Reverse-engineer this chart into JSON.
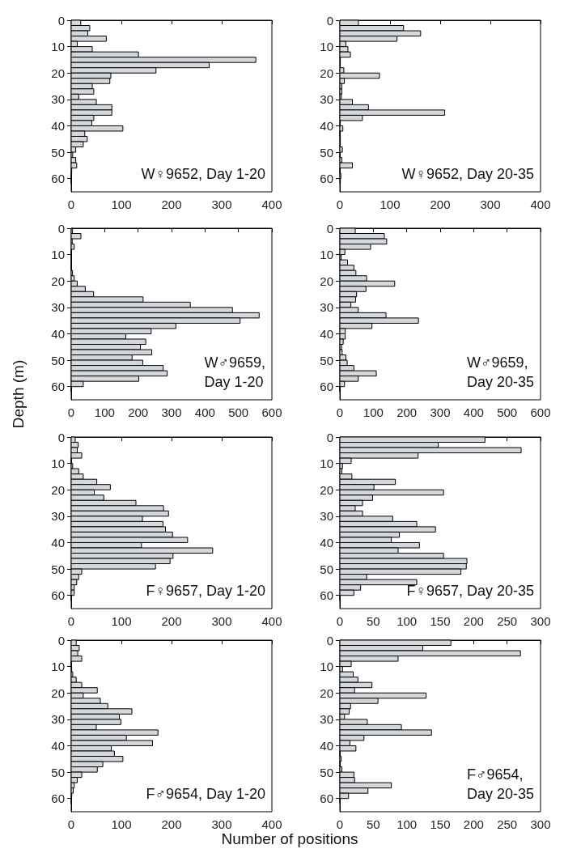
{
  "chart_data": [
    {
      "type": "bar",
      "orientation": "horizontal",
      "x": [
        1,
        3,
        5,
        7,
        9,
        11,
        13,
        15,
        17,
        19,
        21,
        23,
        25,
        27,
        29,
        31,
        33,
        35,
        37,
        39,
        41,
        43,
        45,
        47,
        49,
        51,
        53,
        55,
        57,
        59,
        61
      ],
      "values": [
        19,
        37,
        33,
        70,
        12,
        42,
        134,
        368,
        275,
        169,
        79,
        77,
        42,
        45,
        15,
        50,
        81,
        81,
        45,
        41,
        103,
        27,
        32,
        24,
        9,
        3,
        9,
        11,
        1,
        0,
        0
      ],
      "color": "#d4d7db",
      "xlim": [
        0,
        400
      ],
      "xticks": [
        0,
        100,
        200,
        300,
        400
      ],
      "ylim": [
        65,
        0
      ],
      "yticks": [
        0,
        10,
        20,
        30,
        40,
        50,
        60
      ],
      "annotations": [
        "W♀9652, Day 1-20"
      ]
    },
    {
      "type": "bar",
      "orientation": "horizontal",
      "x": [
        1,
        3,
        5,
        7,
        9,
        11,
        13,
        15,
        17,
        19,
        21,
        23,
        25,
        27,
        29,
        31,
        33,
        35,
        37,
        39,
        41,
        43,
        45,
        47,
        49,
        51,
        53,
        55,
        57,
        59,
        61
      ],
      "values": [
        37,
        127,
        161,
        114,
        12,
        16,
        21,
        1,
        1,
        8,
        79,
        9,
        4,
        4,
        3,
        25,
        57,
        209,
        45,
        1,
        6,
        0,
        1,
        1,
        5,
        0,
        4,
        25,
        0,
        2,
        1
      ],
      "color": "#d4d7db",
      "xlim": [
        0,
        400
      ],
      "xticks": [
        0,
        100,
        200,
        300,
        400
      ],
      "ylim": [
        65,
        0
      ],
      "yticks": [
        0,
        10,
        20,
        30,
        40,
        50,
        60
      ],
      "annotations": [
        "W♀9652, Day 20-35"
      ]
    },
    {
      "type": "bar",
      "orientation": "horizontal",
      "x": [
        1,
        3,
        5,
        7,
        9,
        11,
        13,
        15,
        17,
        19,
        21,
        23,
        25,
        27,
        29,
        31,
        33,
        35,
        37,
        39,
        41,
        43,
        45,
        47,
        49,
        51,
        53,
        55,
        57,
        59,
        61
      ],
      "values": [
        4,
        29,
        3,
        9,
        0,
        0,
        0,
        0,
        4,
        9,
        18,
        42,
        67,
        215,
        356,
        482,
        562,
        505,
        313,
        239,
        163,
        223,
        207,
        241,
        182,
        214,
        275,
        287,
        202,
        36,
        0
      ],
      "color": "#d4d7db",
      "xlim": [
        0,
        600
      ],
      "xticks": [
        0,
        100,
        200,
        300,
        400,
        500,
        600
      ],
      "ylim": [
        65,
        0
      ],
      "yticks": [
        0,
        10,
        20,
        30,
        40,
        50,
        60
      ],
      "annotations": [
        "W♂9659,\nDay 1-20"
      ]
    },
    {
      "type": "bar",
      "orientation": "horizontal",
      "x": [
        1,
        3,
        5,
        7,
        9,
        11,
        13,
        15,
        17,
        19,
        21,
        23,
        25,
        27,
        29,
        31,
        33,
        35,
        37,
        39,
        41,
        43,
        45,
        47,
        49,
        51,
        53,
        55,
        57,
        59,
        61
      ],
      "values": [
        46,
        133,
        140,
        92,
        15,
        4,
        23,
        42,
        48,
        80,
        164,
        78,
        50,
        47,
        33,
        55,
        138,
        235,
        96,
        16,
        16,
        10,
        5,
        7,
        18,
        22,
        42,
        109,
        55,
        14,
        0
      ],
      "color": "#d4d7db",
      "xlim": [
        0,
        600
      ],
      "xticks": [
        0,
        100,
        200,
        300,
        400,
        500,
        600
      ],
      "ylim": [
        65,
        0
      ],
      "yticks": [
        0,
        10,
        20,
        30,
        40,
        50,
        60
      ],
      "annotations": [
        "W♂9659,\nDay 20-35"
      ]
    },
    {
      "type": "bar",
      "orientation": "horizontal",
      "x": [
        1,
        3,
        5,
        7,
        9,
        11,
        13,
        15,
        17,
        19,
        21,
        23,
        25,
        27,
        29,
        31,
        33,
        35,
        37,
        39,
        41,
        43,
        45,
        47,
        49,
        51,
        53,
        55,
        57,
        59,
        61
      ],
      "values": [
        8,
        14,
        12,
        21,
        0,
        3,
        15,
        24,
        51,
        78,
        46,
        65,
        129,
        184,
        194,
        142,
        183,
        188,
        202,
        232,
        140,
        282,
        203,
        197,
        168,
        21,
        15,
        11,
        6,
        6,
        0
      ],
      "color": "#d4d7db",
      "xlim": [
        0,
        400
      ],
      "xticks": [
        0,
        100,
        200,
        300,
        400
      ],
      "ylim": [
        65,
        0
      ],
      "yticks": [
        0,
        10,
        20,
        30,
        40,
        50,
        60
      ],
      "ylabel": "Depth (m)",
      "annotations": [
        "F♀9657, Day 1-20"
      ]
    },
    {
      "type": "bar",
      "orientation": "horizontal",
      "x": [
        1,
        3,
        5,
        7,
        9,
        11,
        13,
        15,
        17,
        19,
        21,
        23,
        25,
        27,
        29,
        31,
        33,
        35,
        37,
        39,
        41,
        43,
        45,
        47,
        49,
        51,
        53,
        55,
        57,
        59,
        61
      ],
      "values": [
        217,
        147,
        271,
        117,
        17,
        4,
        3,
        18,
        83,
        51,
        155,
        49,
        34,
        23,
        34,
        79,
        115,
        143,
        89,
        77,
        119,
        87,
        155,
        190,
        189,
        181,
        40,
        115,
        31,
        21,
        0
      ],
      "color": "#d4d7db",
      "xlim": [
        0,
        300
      ],
      "xticks": [
        0,
        50,
        100,
        150,
        200,
        250,
        300
      ],
      "ylim": [
        65,
        0
      ],
      "yticks": [
        0,
        10,
        20,
        30,
        40,
        50,
        60
      ],
      "annotations": [
        "F♀9657, Day 20-35"
      ]
    },
    {
      "type": "bar",
      "orientation": "horizontal",
      "x": [
        1,
        3,
        5,
        7,
        9,
        11,
        13,
        15,
        17,
        19,
        21,
        23,
        25,
        27,
        29,
        31,
        33,
        35,
        37,
        39,
        41,
        43,
        45,
        47,
        49,
        51,
        53,
        55,
        57,
        59,
        61
      ],
      "values": [
        10,
        16,
        13,
        21,
        0,
        1,
        3,
        10,
        21,
        52,
        24,
        58,
        73,
        121,
        96,
        99,
        50,
        173,
        110,
        162,
        80,
        86,
        103,
        63,
        52,
        21,
        12,
        6,
        4,
        1,
        0
      ],
      "color": "#d4d7db",
      "xlim": [
        0,
        400
      ],
      "xticks": [
        0,
        100,
        200,
        300,
        400
      ],
      "ylim": [
        65,
        0
      ],
      "yticks": [
        0,
        10,
        20,
        30,
        40,
        50,
        60
      ],
      "xlabel": "Number of positions",
      "annotations": [
        "F♂9654, Day 1-20"
      ]
    },
    {
      "type": "bar",
      "orientation": "horizontal",
      "x": [
        1,
        3,
        5,
        7,
        9,
        11,
        13,
        15,
        17,
        19,
        21,
        23,
        25,
        27,
        29,
        31,
        33,
        35,
        37,
        39,
        41,
        43,
        45,
        47,
        49,
        51,
        53,
        55,
        57,
        59,
        61
      ],
      "values": [
        166,
        124,
        270,
        87,
        17,
        4,
        20,
        27,
        48,
        22,
        129,
        57,
        16,
        14,
        7,
        41,
        92,
        137,
        36,
        15,
        24,
        0,
        2,
        0,
        3,
        21,
        22,
        77,
        42,
        13,
        0
      ],
      "color": "#d4d7db",
      "xlim": [
        0,
        300
      ],
      "xticks": [
        0,
        50,
        100,
        150,
        200,
        250,
        300
      ],
      "ylim": [
        65,
        0
      ],
      "yticks": [
        0,
        10,
        20,
        30,
        40,
        50,
        60
      ],
      "annotations": [
        "F♂9654,\nDay 20-35"
      ]
    }
  ]
}
